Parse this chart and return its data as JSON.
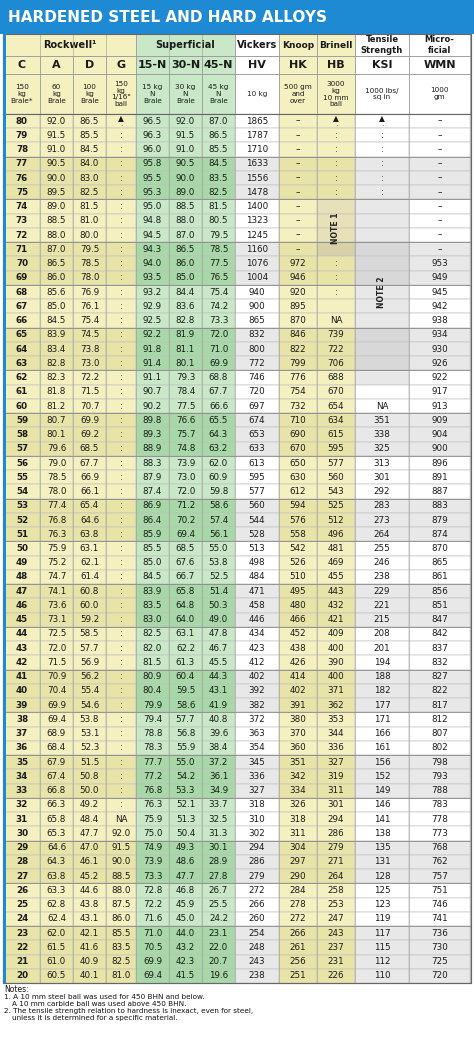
{
  "title": "HARDENED STEEL AND HARD ALLOYS",
  "title_bg": "#1f8ad4",
  "rockwell_bg": "#f5f0c0",
  "superficial_bg": "#c8e8c8",
  "white_bg": "#ffffff",
  "alt_rockwell_bg": "#e8e4a8",
  "alt_superficial_bg": "#a8d8a8",
  "alt_white_bg": "#e8e8e8",
  "col_headers": [
    "C",
    "A",
    "D",
    "G",
    "15-N",
    "30-N",
    "45-N",
    "HV",
    "HK",
    "HB",
    "KSI",
    "WMN"
  ],
  "col_subheaders": [
    "150\nkg\nBrale*",
    "60\nkg\nBrale",
    "100\nkg\nBrale",
    "150\nkg\n1/16\"\nball",
    "15 kg\nN\nBrale",
    "30 kg\nN\nBrale",
    "45 kg\nN\nBrale",
    "10 kg",
    "500 gm\nand\nover",
    "3000\nkg\n10 mm\nball",
    "1000 lbs/\nsq in",
    "1000\ngm"
  ],
  "rows": [
    [
      "80",
      "92.0",
      "86.5",
      "▲⋮",
      "96.5",
      "92.0",
      "87.0",
      "1865",
      "–",
      "▲⋮",
      "▲⋮",
      "–"
    ],
    [
      "79",
      "91.5",
      "85.5",
      "⋮",
      "96.3",
      "91.5",
      "86.5",
      "1787",
      "–",
      "⋮",
      "⋮",
      "–"
    ],
    [
      "78",
      "91.0",
      "84.5",
      "⋮",
      "96.0",
      "91.0",
      "85.5",
      "1710",
      "–",
      "⋮",
      "⋮",
      "–"
    ],
    [
      "77",
      "90.5",
      "84.0",
      "⋮",
      "95.8",
      "90.5",
      "84.5",
      "1633",
      "–",
      "⋮",
      "⋮",
      "–"
    ],
    [
      "76",
      "90.0",
      "83.0",
      "⋮",
      "95.5",
      "90.0",
      "83.5",
      "1556",
      "–",
      "⋮",
      "⋮",
      "–"
    ],
    [
      "75",
      "89.5",
      "82.5",
      "⋮",
      "95.3",
      "89.0",
      "82.5",
      "1478",
      "–",
      "⋮",
      "⋮",
      "–"
    ],
    [
      "74",
      "89.0",
      "81.5",
      "⋮",
      "95.0",
      "88.5",
      "81.5",
      "1400",
      "–",
      "NOTE1",
      "NOTE2",
      "–"
    ],
    [
      "73",
      "88.5",
      "81.0",
      "⋮",
      "94.8",
      "88.0",
      "80.5",
      "1323",
      "–",
      "NOTE1",
      "NOTE2",
      "–"
    ],
    [
      "72",
      "88.0",
      "80.0",
      "⋮",
      "94.5",
      "87.0",
      "79.5",
      "1245",
      "–",
      "NOTE1",
      "NOTE2",
      "–"
    ],
    [
      "71",
      "87.0",
      "79.5",
      "⋮",
      "94.3",
      "86.5",
      "78.5",
      "1160",
      "–",
      "NOTE1",
      "NOTE2",
      "–"
    ],
    [
      "70",
      "86.5",
      "78.5",
      "⋮",
      "94.0",
      "86.0",
      "77.5",
      "1076",
      "972",
      "⋮",
      "NOTE2",
      "953"
    ],
    [
      "69",
      "86.0",
      "78.0",
      "⋮",
      "93.5",
      "85.0",
      "76.5",
      "1004",
      "946",
      "⋮",
      "NOTE2",
      "949"
    ],
    [
      "68",
      "85.6",
      "76.9",
      "⋮",
      "93.2",
      "84.4",
      "75.4",
      "940",
      "920",
      "⋮",
      "NOTE2",
      "945"
    ],
    [
      "67",
      "85.0",
      "76.1",
      "⋮",
      "92.9",
      "83.6",
      "74.2",
      "900",
      "895",
      "",
      "NOTE2",
      "942"
    ],
    [
      "66",
      "84.5",
      "75.4",
      "⋮",
      "92.5",
      "82.8",
      "73.3",
      "865",
      "870",
      "NA",
      "NOTE2",
      "938"
    ],
    [
      "65",
      "83.9",
      "74.5",
      "⋮",
      "92.2",
      "81.9",
      "72.0",
      "832",
      "846",
      "739",
      "NOTE2",
      "934"
    ],
    [
      "64",
      "83.4",
      "73.8",
      "⋮",
      "91.8",
      "81.1",
      "71.0",
      "800",
      "822",
      "722",
      "NOTE2",
      "930"
    ],
    [
      "63",
      "82.8",
      "73.0",
      "⋮",
      "91.4",
      "80.1",
      "69.9",
      "772",
      "799",
      "706",
      "NOTE2",
      "926"
    ],
    [
      "62",
      "82.3",
      "72.2",
      "⋮",
      "91.1",
      "79.3",
      "68.8",
      "746",
      "776",
      "688",
      "NOTE2",
      "922"
    ],
    [
      "61",
      "81.8",
      "71.5",
      "⋮",
      "90.7",
      "78.4",
      "67.7",
      "720",
      "754",
      "670",
      "",
      "917"
    ],
    [
      "60",
      "81.2",
      "70.7",
      "⋮",
      "90.2",
      "77.5",
      "66.6",
      "697",
      "732",
      "654",
      "NA",
      "913"
    ],
    [
      "59",
      "80.7",
      "69.9",
      "⋮",
      "89.8",
      "76.6",
      "65.5",
      "674",
      "710",
      "634",
      "351",
      "909"
    ],
    [
      "58",
      "80.1",
      "69.2",
      "⋮",
      "89.3",
      "75.7",
      "64.3",
      "653",
      "690",
      "615",
      "338",
      "904"
    ],
    [
      "57",
      "79.6",
      "68.5",
      "⋮",
      "88.9",
      "74.8",
      "63.2",
      "633",
      "670",
      "595",
      "325",
      "900"
    ],
    [
      "56",
      "79.0",
      "67.7",
      "⋮",
      "88.3",
      "73.9",
      "62.0",
      "613",
      "650",
      "577",
      "313",
      "896"
    ],
    [
      "55",
      "78.5",
      "66.9",
      "⋮",
      "87.9",
      "73.0",
      "60.9",
      "595",
      "630",
      "560",
      "301",
      "891"
    ],
    [
      "54",
      "78.0",
      "66.1",
      "⋮",
      "87.4",
      "72.0",
      "59.8",
      "577",
      "612",
      "543",
      "292",
      "887"
    ],
    [
      "53",
      "77.4",
      "65.4",
      "⋮",
      "86.9",
      "71.2",
      "58.6",
      "560",
      "594",
      "525",
      "283",
      "883"
    ],
    [
      "52",
      "76.8",
      "64.6",
      "⋮",
      "86.4",
      "70.2",
      "57.4",
      "544",
      "576",
      "512",
      "273",
      "879"
    ],
    [
      "51",
      "76.3",
      "63.8",
      "⋮",
      "85.9",
      "69.4",
      "56.1",
      "528",
      "558",
      "496",
      "264",
      "874"
    ],
    [
      "50",
      "75.9",
      "63.1",
      "⋮",
      "85.5",
      "68.5",
      "55.0",
      "513",
      "542",
      "481",
      "255",
      "870"
    ],
    [
      "49",
      "75.2",
      "62.1",
      "⋮",
      "85.0",
      "67.6",
      "53.8",
      "498",
      "526",
      "469",
      "246",
      "865"
    ],
    [
      "48",
      "74.7",
      "61.4",
      "⋮",
      "84.5",
      "66.7",
      "52.5",
      "484",
      "510",
      "455",
      "238",
      "861"
    ],
    [
      "47",
      "74.1",
      "60.8",
      "⋮",
      "83.9",
      "65.8",
      "51.4",
      "471",
      "495",
      "443",
      "229",
      "856"
    ],
    [
      "46",
      "73.6",
      "60.0",
      "⋮",
      "83.5",
      "64.8",
      "50.3",
      "458",
      "480",
      "432",
      "221",
      "851"
    ],
    [
      "45",
      "73.1",
      "59.2",
      "⋮",
      "83.0",
      "64.0",
      "49.0",
      "446",
      "466",
      "421",
      "215",
      "847"
    ],
    [
      "44",
      "72.5",
      "58.5",
      "⋮",
      "82.5",
      "63.1",
      "47.8",
      "434",
      "452",
      "409",
      "208",
      "842"
    ],
    [
      "43",
      "72.0",
      "57.7",
      "⋮",
      "82.0",
      "62.2",
      "46.7",
      "423",
      "438",
      "400",
      "201",
      "837"
    ],
    [
      "42",
      "71.5",
      "56.9",
      "⋮",
      "81.5",
      "61.3",
      "45.5",
      "412",
      "426",
      "390",
      "194",
      "832"
    ],
    [
      "41",
      "70.9",
      "56.2",
      "⋮",
      "80.9",
      "60.4",
      "44.3",
      "402",
      "414",
      "400",
      "188",
      "827"
    ],
    [
      "40",
      "70.4",
      "55.4",
      "⋮",
      "80.4",
      "59.5",
      "43.1",
      "392",
      "402",
      "371",
      "182",
      "822"
    ],
    [
      "39",
      "69.9",
      "54.6",
      "⋮",
      "79.9",
      "58.6",
      "41.9",
      "382",
      "391",
      "362",
      "177",
      "817"
    ],
    [
      "38",
      "69.4",
      "53.8",
      "⋮",
      "79.4",
      "57.7",
      "40.8",
      "372",
      "380",
      "353",
      "171",
      "812"
    ],
    [
      "37",
      "68.9",
      "53.1",
      "⋮",
      "78.8",
      "56.8",
      "39.6",
      "363",
      "370",
      "344",
      "166",
      "807"
    ],
    [
      "36",
      "68.4",
      "52.3",
      "⋮",
      "78.3",
      "55.9",
      "38.4",
      "354",
      "360",
      "336",
      "161",
      "802"
    ],
    [
      "35",
      "67.9",
      "51.5",
      "⋮",
      "77.7",
      "55.0",
      "37.2",
      "345",
      "351",
      "327",
      "156",
      "798"
    ],
    [
      "34",
      "67.4",
      "50.8",
      "⋮",
      "77.2",
      "54.2",
      "36.1",
      "336",
      "342",
      "319",
      "152",
      "793"
    ],
    [
      "33",
      "66.8",
      "50.0",
      "⋮",
      "76.8",
      "53.3",
      "34.9",
      "327",
      "334",
      "311",
      "149",
      "788"
    ],
    [
      "32",
      "66.3",
      "49.2",
      "⋮",
      "76.3",
      "52.1",
      "33.7",
      "318",
      "326",
      "301",
      "146",
      "783"
    ],
    [
      "31",
      "65.8",
      "48.4",
      "NA",
      "75.9",
      "51.3",
      "32.5",
      "310",
      "318",
      "294",
      "141",
      "778"
    ],
    [
      "30",
      "65.3",
      "47.7",
      "92.0",
      "75.0",
      "50.4",
      "31.3",
      "302",
      "311",
      "286",
      "138",
      "773"
    ],
    [
      "29",
      "64.6",
      "47.0",
      "91.5",
      "74.9",
      "49.3",
      "30.1",
      "294",
      "304",
      "279",
      "135",
      "768"
    ],
    [
      "28",
      "64.3",
      "46.1",
      "90.0",
      "73.9",
      "48.6",
      "28.9",
      "286",
      "297",
      "271",
      "131",
      "762"
    ],
    [
      "27",
      "63.8",
      "45.2",
      "88.5",
      "73.3",
      "47.7",
      "27.8",
      "279",
      "290",
      "264",
      "128",
      "757"
    ],
    [
      "26",
      "63.3",
      "44.6",
      "88.0",
      "72.8",
      "46.8",
      "26.7",
      "272",
      "284",
      "258",
      "125",
      "751"
    ],
    [
      "25",
      "62.8",
      "43.8",
      "87.5",
      "72.2",
      "45.9",
      "25.5",
      "266",
      "278",
      "253",
      "123",
      "746"
    ],
    [
      "24",
      "62.4",
      "43.1",
      "86.0",
      "71.6",
      "45.0",
      "24.2",
      "260",
      "272",
      "247",
      "119",
      "741"
    ],
    [
      "23",
      "62.0",
      "42.1",
      "85.5",
      "71.0",
      "44.0",
      "23.1",
      "254",
      "266",
      "243",
      "117",
      "736"
    ],
    [
      "22",
      "61.5",
      "41.6",
      "83.5",
      "70.5",
      "43.2",
      "22.0",
      "248",
      "261",
      "237",
      "115",
      "730"
    ],
    [
      "21",
      "61.0",
      "40.9",
      "82.5",
      "69.9",
      "42.3",
      "20.7",
      "243",
      "256",
      "231",
      "112",
      "725"
    ],
    [
      "20",
      "60.5",
      "40.1",
      "81.0",
      "69.4",
      "41.5",
      "19.6",
      "238",
      "251",
      "226",
      "110",
      "720"
    ]
  ],
  "note1_rows": [
    6,
    7,
    8,
    9
  ],
  "note2_rows": [
    6,
    7,
    8,
    9,
    10,
    11,
    12,
    13,
    14,
    15,
    16,
    17,
    18
  ],
  "row_groups": [
    0,
    3,
    6,
    9,
    12,
    15,
    18,
    21,
    24,
    27,
    30,
    33,
    36,
    39,
    42,
    45,
    48,
    51,
    54,
    57
  ]
}
